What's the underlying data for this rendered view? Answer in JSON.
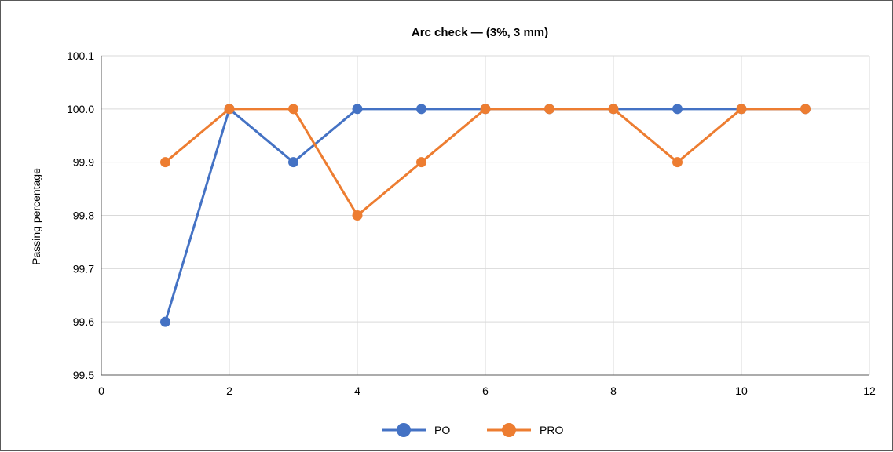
{
  "chart_data": {
    "type": "line",
    "title": "Arc check — (3%, 3 mm)",
    "xlabel": "",
    "ylabel": "Passing percentage",
    "xlim": [
      0,
      12
    ],
    "ylim": [
      99.5,
      100.1
    ],
    "x_ticks": [
      "0",
      "2",
      "4",
      "6",
      "8",
      "10",
      "12"
    ],
    "y_ticks": [
      "99.5",
      "99.6",
      "99.7",
      "99.8",
      "99.9",
      "100.0",
      "100.1"
    ],
    "grid": true,
    "legend_position": "bottom",
    "series": [
      {
        "name": "PO",
        "color": "#4472C4",
        "x": [
          1,
          2,
          3,
          4,
          5,
          6,
          7,
          8,
          9,
          10,
          11
        ],
        "values": [
          99.6,
          100.0,
          99.9,
          100.0,
          100.0,
          100.0,
          100.0,
          100.0,
          100.0,
          100.0,
          100.0
        ]
      },
      {
        "name": "PRO",
        "color": "#ED7D31",
        "x": [
          1,
          2,
          3,
          4,
          5,
          6,
          7,
          8,
          9,
          10,
          11
        ],
        "values": [
          99.9,
          100.0,
          100.0,
          99.8,
          99.9,
          100.0,
          100.0,
          100.0,
          99.9,
          100.0,
          100.0
        ]
      }
    ]
  }
}
